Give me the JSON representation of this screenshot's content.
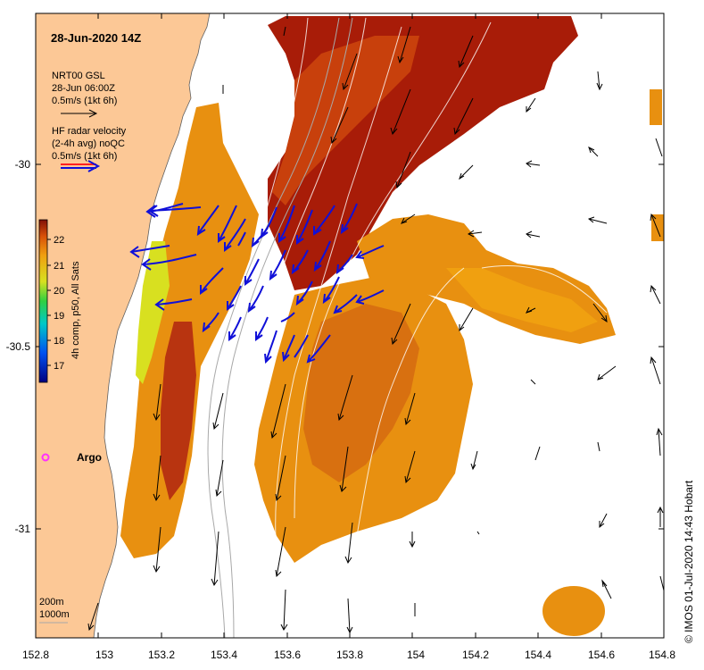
{
  "title": "28-Jun-2020 14Z",
  "legend_model": {
    "line1": "NRT00 GSL",
    "line2": "28-Jun 06:00Z",
    "line3": "0.5m/s (1kt 6h)"
  },
  "legend_radar": {
    "line1": "HF radar velocity",
    "line2": "(2-4h avg) noQC",
    "line3": "0.5m/s (1kt 6h)"
  },
  "colorbar": {
    "label": "4h comp, p50, All Sats",
    "ticks": [
      "22",
      "21",
      "20",
      "19",
      "18",
      "17"
    ]
  },
  "x_ticks": [
    "152.8",
    "153",
    "153.2",
    "153.4",
    "153.6",
    "153.8",
    "154",
    "154.2",
    "154.4",
    "154.6",
    "154.8"
  ],
  "y_ticks": [
    "-30",
    "-30.5",
    "-31"
  ],
  "argo_label": "Argo",
  "depth_legend": {
    "a": "200m",
    "b": "1000m"
  },
  "credit": "© IMOS 01-Jul-2020 14:43 Hobart",
  "colors": {
    "land": "#fcc896",
    "sst_warm": "#a81c08",
    "sst_mid": "#e89010",
    "sst_cool": "#d8e020",
    "radar_arrow": "#1010d8",
    "argo": "#ff30ff"
  }
}
